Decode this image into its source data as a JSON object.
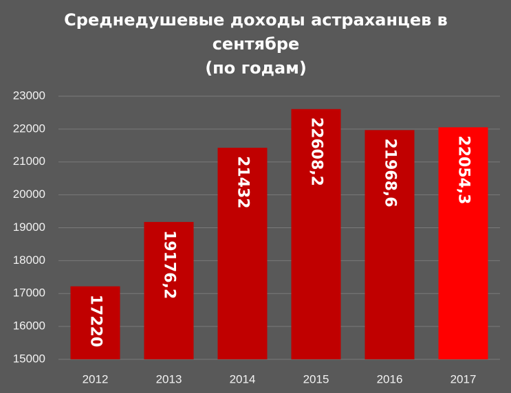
{
  "chart_data": {
    "type": "bar",
    "title": [
      "Среднедушевые доходы астраханцев в",
      "сентябре",
      "(по годам)"
    ],
    "categories": [
      "2012",
      "2013",
      "2014",
      "2015",
      "2016",
      "2017"
    ],
    "values": [
      17220,
      19176.2,
      21432,
      22608.2,
      21968.6,
      22054.3
    ],
    "value_labels": [
      "17220",
      "19176,2",
      "21432",
      "22608,2",
      "21968,6",
      "22054,3"
    ],
    "colors": [
      "#c00000",
      "#c00000",
      "#c00000",
      "#c00000",
      "#c00000",
      "#ff0000"
    ],
    "ylim": [
      15000,
      23000
    ],
    "yticks": [
      15000,
      16000,
      17000,
      18000,
      19000,
      20000,
      21000,
      22000,
      23000
    ],
    "grid": true
  }
}
